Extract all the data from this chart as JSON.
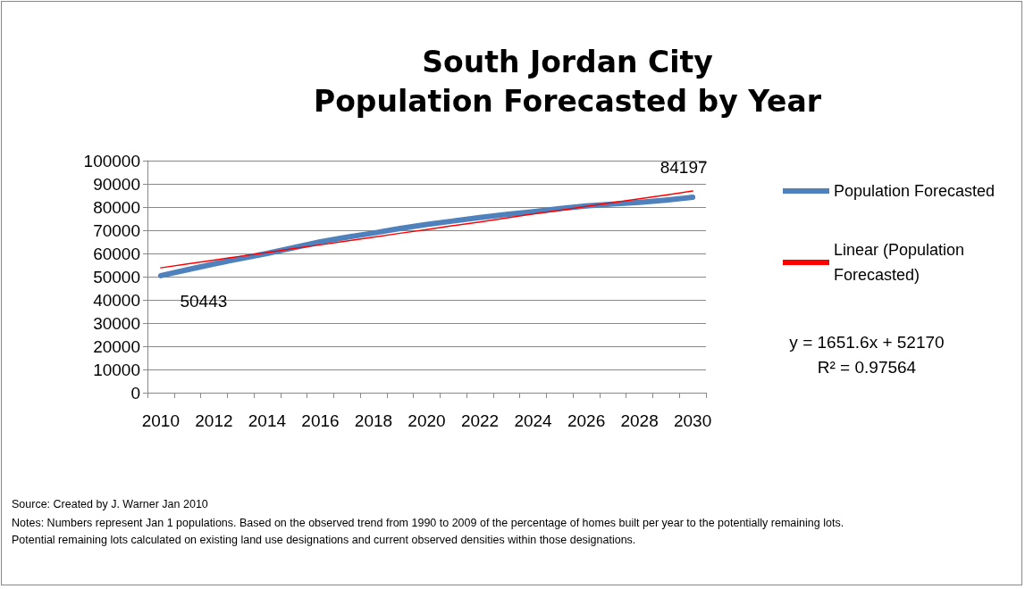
{
  "chart_data": {
    "type": "line",
    "title": "South Jordan City\nPopulation Forecasted by Year",
    "categories": [
      "2010",
      null,
      "2012",
      null,
      "2014",
      null,
      "2016",
      null,
      "2018",
      null,
      "2020",
      null,
      "2022",
      null,
      "2024",
      null,
      "2026",
      null,
      "2028",
      null,
      "2030"
    ],
    "series": [
      {
        "name": "Population Forecasted",
        "color": "#4f81bd",
        "values": [
          50443,
          53000,
          55500,
          57800,
          60000,
          62500,
          65000,
          67000,
          68800,
          70800,
          72500,
          74000,
          75500,
          76800,
          78000,
          79300,
          80500,
          81300,
          82000,
          83000,
          84197
        ],
        "value_labels": [
          "50443",
          null,
          null,
          null,
          null,
          null,
          null,
          null,
          null,
          null,
          null,
          null,
          null,
          null,
          null,
          null,
          null,
          null,
          null,
          null,
          "84197"
        ]
      },
      {
        "name": "Linear (Population Forecasted)",
        "type": "line",
        "color": "#ff0000",
        "values": [
          53800,
          55500,
          57100,
          58800,
          60400,
          62100,
          63700,
          65400,
          67000,
          68700,
          70300,
          72000,
          73600,
          75300,
          77000,
          78600,
          80300,
          81900,
          83600,
          85200,
          86900
        ]
      }
    ],
    "ylim": [
      0,
      100000
    ],
    "yticks": [
      0,
      10000,
      20000,
      30000,
      40000,
      50000,
      60000,
      70000,
      80000,
      90000,
      100000
    ],
    "grid": "y",
    "legend": "right",
    "marker": "none",
    "annotations": [
      "y = 1651.6x + 52170\nR² = 0.97564",
      "Source: Created by J. Warner Jan 2010",
      "Notes: Numbers represent Jan 1 populations.  Based on the observed trend  from 1990 to 2009 of the percentage of homes built per year to the potentially remaining lots.  Potential remaining lots calculated on existing land use designations and current observed densities  within those designations."
    ]
  }
}
